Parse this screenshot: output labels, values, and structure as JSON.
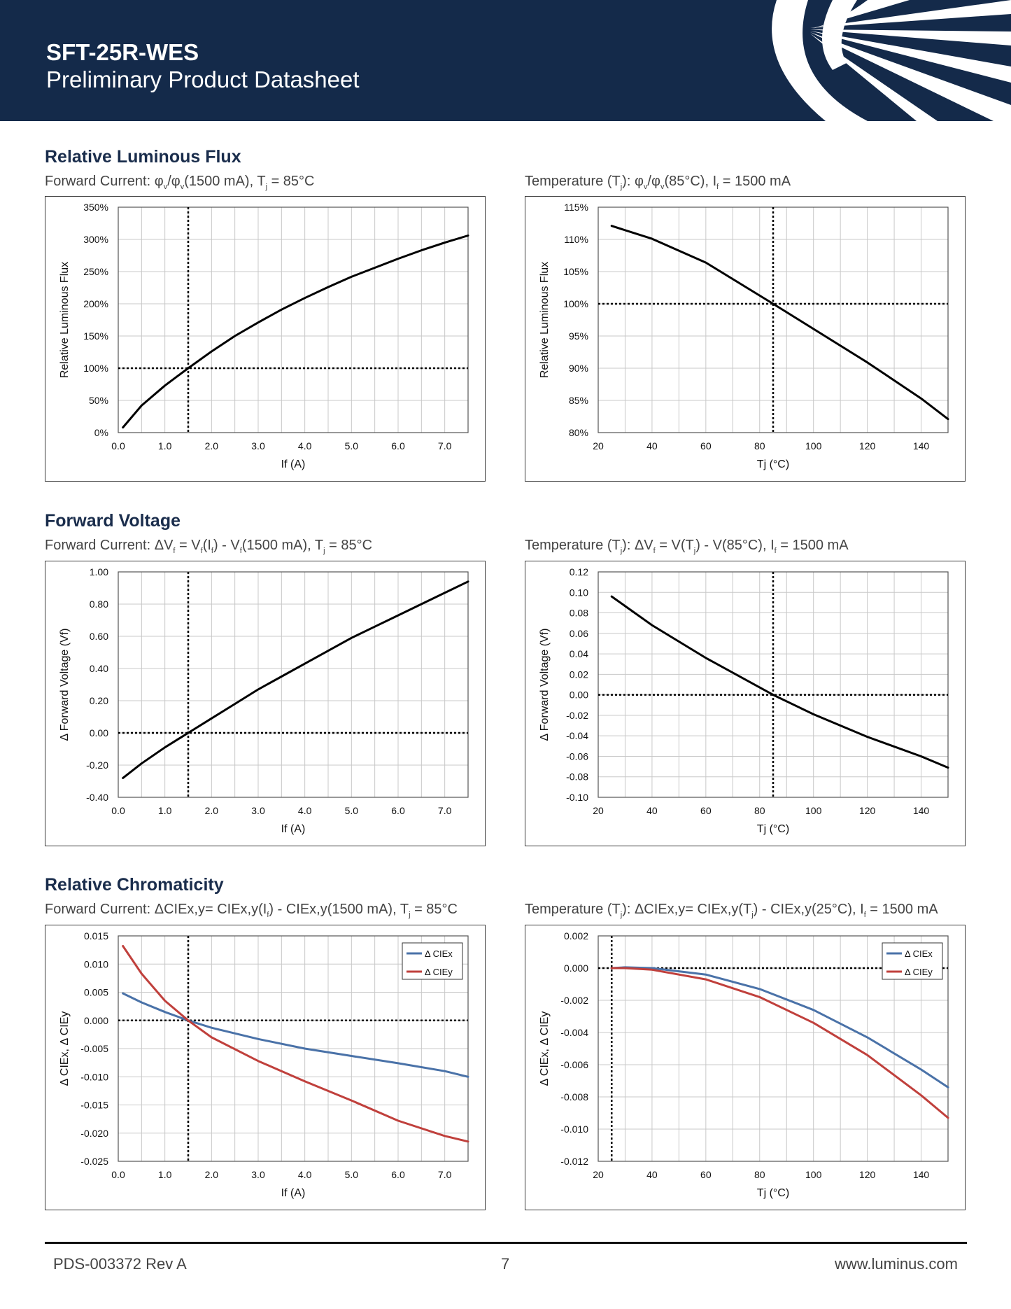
{
  "header": {
    "product": "SFT-25R-WES",
    "subtitle": "Preliminary Product Datasheet"
  },
  "sections": [
    {
      "title": "Relative Luminous Flux",
      "left_caption": "Forward Current: φv/φv(1500 mA), Tj = 85°C",
      "right_caption": "Temperature (Tj): φv/φv(85°C), If = 1500 mA"
    },
    {
      "title": "Forward Voltage",
      "left_caption": "Forward Current: ΔVf = Vf(If) - Vf(1500 mA), Tj = 85°C",
      "right_caption": "Temperature (Tj): ΔVf = V(Tj) - V(85°C), If = 1500 mA"
    },
    {
      "title": "Relative Chromaticity",
      "left_caption": "Forward Current: ΔCIEx,y= CIEx,y(If) - CIEx,y(1500 mA), Tj = 85°C",
      "right_caption": "Temperature (Tj): ΔCIEx,y= CIEx,y(Tj) - CIEx,y(25°C), If = 1500 mA"
    }
  ],
  "chart_data": [
    {
      "id": "flux_current",
      "type": "line",
      "xlabel": "If (A)",
      "ylabel": "Relative Luminous Flux",
      "xlim": [
        0,
        7.5
      ],
      "ylim": [
        0,
        350
      ],
      "xticks": [
        0,
        1,
        2,
        3,
        4,
        5,
        6,
        7
      ],
      "xtick_labels": [
        "0.0",
        "1.0",
        "2.0",
        "3.0",
        "4.0",
        "5.0",
        "6.0",
        "7.0"
      ],
      "yticks": [
        0,
        50,
        100,
        150,
        200,
        250,
        300,
        350
      ],
      "ytick_labels": [
        "0%",
        "50%",
        "100%",
        "150%",
        "200%",
        "250%",
        "300%",
        "350%"
      ],
      "grid": true,
      "ref_x": 1.5,
      "ref_y": 100,
      "series": [
        {
          "color": "#000000",
          "x": [
            0.1,
            0.5,
            1.0,
            1.5,
            2.0,
            2.5,
            3.0,
            3.5,
            4.0,
            4.5,
            5.0,
            5.5,
            6.0,
            6.5,
            7.0,
            7.5
          ],
          "y": [
            8,
            42,
            73,
            100,
            126,
            150,
            171,
            191,
            209,
            226,
            242,
            256,
            270,
            283,
            295,
            306
          ]
        }
      ]
    },
    {
      "id": "flux_temp",
      "type": "line",
      "xlabel": "Tj (°C)",
      "ylabel": "Relative Luminous Flux",
      "xlim": [
        20,
        150
      ],
      "ylim": [
        80,
        115
      ],
      "xticks": [
        20,
        40,
        60,
        80,
        100,
        120,
        140
      ],
      "xtick_labels": [
        "20",
        "40",
        "60",
        "80",
        "100",
        "120",
        "140"
      ],
      "yticks": [
        80,
        85,
        90,
        95,
        100,
        105,
        110,
        115
      ],
      "ytick_labels": [
        "80%",
        "85%",
        "90%",
        "95%",
        "100%",
        "105%",
        "110%",
        "115%"
      ],
      "grid": true,
      "ref_x": 85,
      "ref_y": 100,
      "series": [
        {
          "color": "#000000",
          "x": [
            25,
            40,
            60,
            85,
            100,
            120,
            140,
            150
          ],
          "y": [
            112.1,
            110.1,
            106.4,
            100.0,
            96.1,
            90.9,
            85.3,
            82.1
          ]
        }
      ]
    },
    {
      "id": "vf_current",
      "type": "line",
      "xlabel": "If (A)",
      "ylabel": "Δ Forward Voltage (Vf)",
      "xlim": [
        0,
        7.5
      ],
      "ylim": [
        -0.4,
        1.0
      ],
      "xticks": [
        0,
        1,
        2,
        3,
        4,
        5,
        6,
        7
      ],
      "xtick_labels": [
        "0.0",
        "1.0",
        "2.0",
        "3.0",
        "4.0",
        "5.0",
        "6.0",
        "7.0"
      ],
      "yticks": [
        -0.4,
        -0.2,
        0,
        0.2,
        0.4,
        0.6,
        0.8,
        1.0
      ],
      "ytick_labels": [
        "-0.40",
        "-0.20",
        "0.00",
        "0.20",
        "0.40",
        "0.60",
        "0.80",
        "1.00"
      ],
      "grid": true,
      "ref_x": 1.5,
      "ref_y": 0,
      "series": [
        {
          "color": "#000000",
          "x": [
            0.1,
            0.5,
            1.0,
            1.5,
            2.0,
            2.5,
            3.0,
            3.5,
            4.0,
            4.5,
            5.0,
            5.5,
            6.0,
            6.5,
            7.0,
            7.5
          ],
          "y": [
            -0.28,
            -0.19,
            -0.09,
            0.0,
            0.09,
            0.18,
            0.27,
            0.35,
            0.43,
            0.51,
            0.59,
            0.66,
            0.73,
            0.8,
            0.87,
            0.94
          ]
        }
      ]
    },
    {
      "id": "vf_temp",
      "type": "line",
      "xlabel": "Tj (°C)",
      "ylabel": "Δ Forward Voltage (Vf)",
      "xlim": [
        20,
        150
      ],
      "ylim": [
        -0.1,
        0.12
      ],
      "xticks": [
        20,
        40,
        60,
        80,
        100,
        120,
        140
      ],
      "xtick_labels": [
        "20",
        "40",
        "60",
        "80",
        "100",
        "120",
        "140"
      ],
      "yticks": [
        -0.1,
        -0.08,
        -0.06,
        -0.04,
        -0.02,
        0,
        0.02,
        0.04,
        0.06,
        0.08,
        0.1,
        0.12
      ],
      "ytick_labels": [
        "-0.10",
        "-0.08",
        "-0.06",
        "-0.04",
        "-0.02",
        "0.00",
        "0.02",
        "0.04",
        "0.06",
        "0.08",
        "0.10",
        "0.12"
      ],
      "grid": true,
      "ref_x": 85,
      "ref_y": 0,
      "series": [
        {
          "color": "#000000",
          "x": [
            25,
            40,
            60,
            85,
            100,
            120,
            140,
            150
          ],
          "y": [
            0.096,
            0.068,
            0.036,
            0.0,
            -0.019,
            -0.041,
            -0.06,
            -0.071
          ]
        }
      ]
    },
    {
      "id": "cie_current",
      "type": "line",
      "xlabel": "If (A)",
      "ylabel": "Δ CIEx, Δ CIEy",
      "xlim": [
        0,
        7.5
      ],
      "ylim": [
        -0.025,
        0.015
      ],
      "xticks": [
        0,
        1,
        2,
        3,
        4,
        5,
        6,
        7
      ],
      "xtick_labels": [
        "0.0",
        "1.0",
        "2.0",
        "3.0",
        "4.0",
        "5.0",
        "6.0",
        "7.0"
      ],
      "yticks": [
        -0.025,
        -0.02,
        -0.015,
        -0.01,
        -0.005,
        0,
        0.005,
        0.01,
        0.015
      ],
      "ytick_labels": [
        "-0.025",
        "-0.020",
        "-0.015",
        "-0.010",
        "-0.005",
        "0.000",
        "0.005",
        "0.010",
        "0.015"
      ],
      "grid": true,
      "ref_x": 1.5,
      "ref_y": 0,
      "legend": "top-right",
      "series": [
        {
          "name": "Δ CIEx",
          "color": "#4a72a8",
          "x": [
            0.1,
            0.5,
            1.0,
            1.5,
            2.0,
            3.0,
            4.0,
            5.0,
            6.0,
            7.0,
            7.5
          ],
          "y": [
            0.0048,
            0.0032,
            0.0015,
            0.0,
            -0.0013,
            -0.0033,
            -0.005,
            -0.0063,
            -0.0076,
            -0.009,
            -0.01
          ]
        },
        {
          "name": "Δ CIEy",
          "color": "#c0403c",
          "x": [
            0.1,
            0.5,
            1.0,
            1.5,
            2.0,
            3.0,
            4.0,
            5.0,
            6.0,
            7.0,
            7.5
          ],
          "y": [
            0.0132,
            0.0083,
            0.0035,
            0.0,
            -0.003,
            -0.0072,
            -0.0108,
            -0.0142,
            -0.0178,
            -0.0205,
            -0.0215
          ]
        }
      ]
    },
    {
      "id": "cie_temp",
      "type": "line",
      "xlabel": "Tj (°C)",
      "ylabel": "Δ CIEx, Δ CIEy",
      "xlim": [
        20,
        150
      ],
      "ylim": [
        -0.012,
        0.002
      ],
      "xticks": [
        20,
        40,
        60,
        80,
        100,
        120,
        140
      ],
      "xtick_labels": [
        "20",
        "40",
        "60",
        "80",
        "100",
        "120",
        "140"
      ],
      "yticks": [
        -0.012,
        -0.01,
        -0.008,
        -0.006,
        -0.004,
        -0.002,
        0,
        0.002
      ],
      "ytick_labels": [
        "-0.012",
        "-0.010",
        "-0.008",
        "-0.006",
        "-0.004",
        "-0.002",
        "0.000",
        "0.002"
      ],
      "grid": true,
      "ref_x": 25,
      "ref_y": 0,
      "legend": "top-right",
      "series": [
        {
          "name": "Δ CIEx",
          "color": "#4a72a8",
          "x": [
            25,
            30,
            40,
            60,
            80,
            100,
            120,
            140,
            150
          ],
          "y": [
            0.0,
            5e-05,
            0.0,
            -0.0004,
            -0.0013,
            -0.0026,
            -0.0043,
            -0.0063,
            -0.0074
          ]
        },
        {
          "name": "Δ CIEy",
          "color": "#c0403c",
          "x": [
            25,
            30,
            40,
            60,
            80,
            100,
            120,
            140,
            150
          ],
          "y": [
            0.0,
            0.0,
            -0.0001,
            -0.0007,
            -0.0018,
            -0.0034,
            -0.0054,
            -0.0079,
            -0.0093
          ]
        }
      ]
    }
  ],
  "footer": {
    "doc_id": "PDS-003372 Rev A",
    "page": "7",
    "website": "www.luminus.com"
  }
}
